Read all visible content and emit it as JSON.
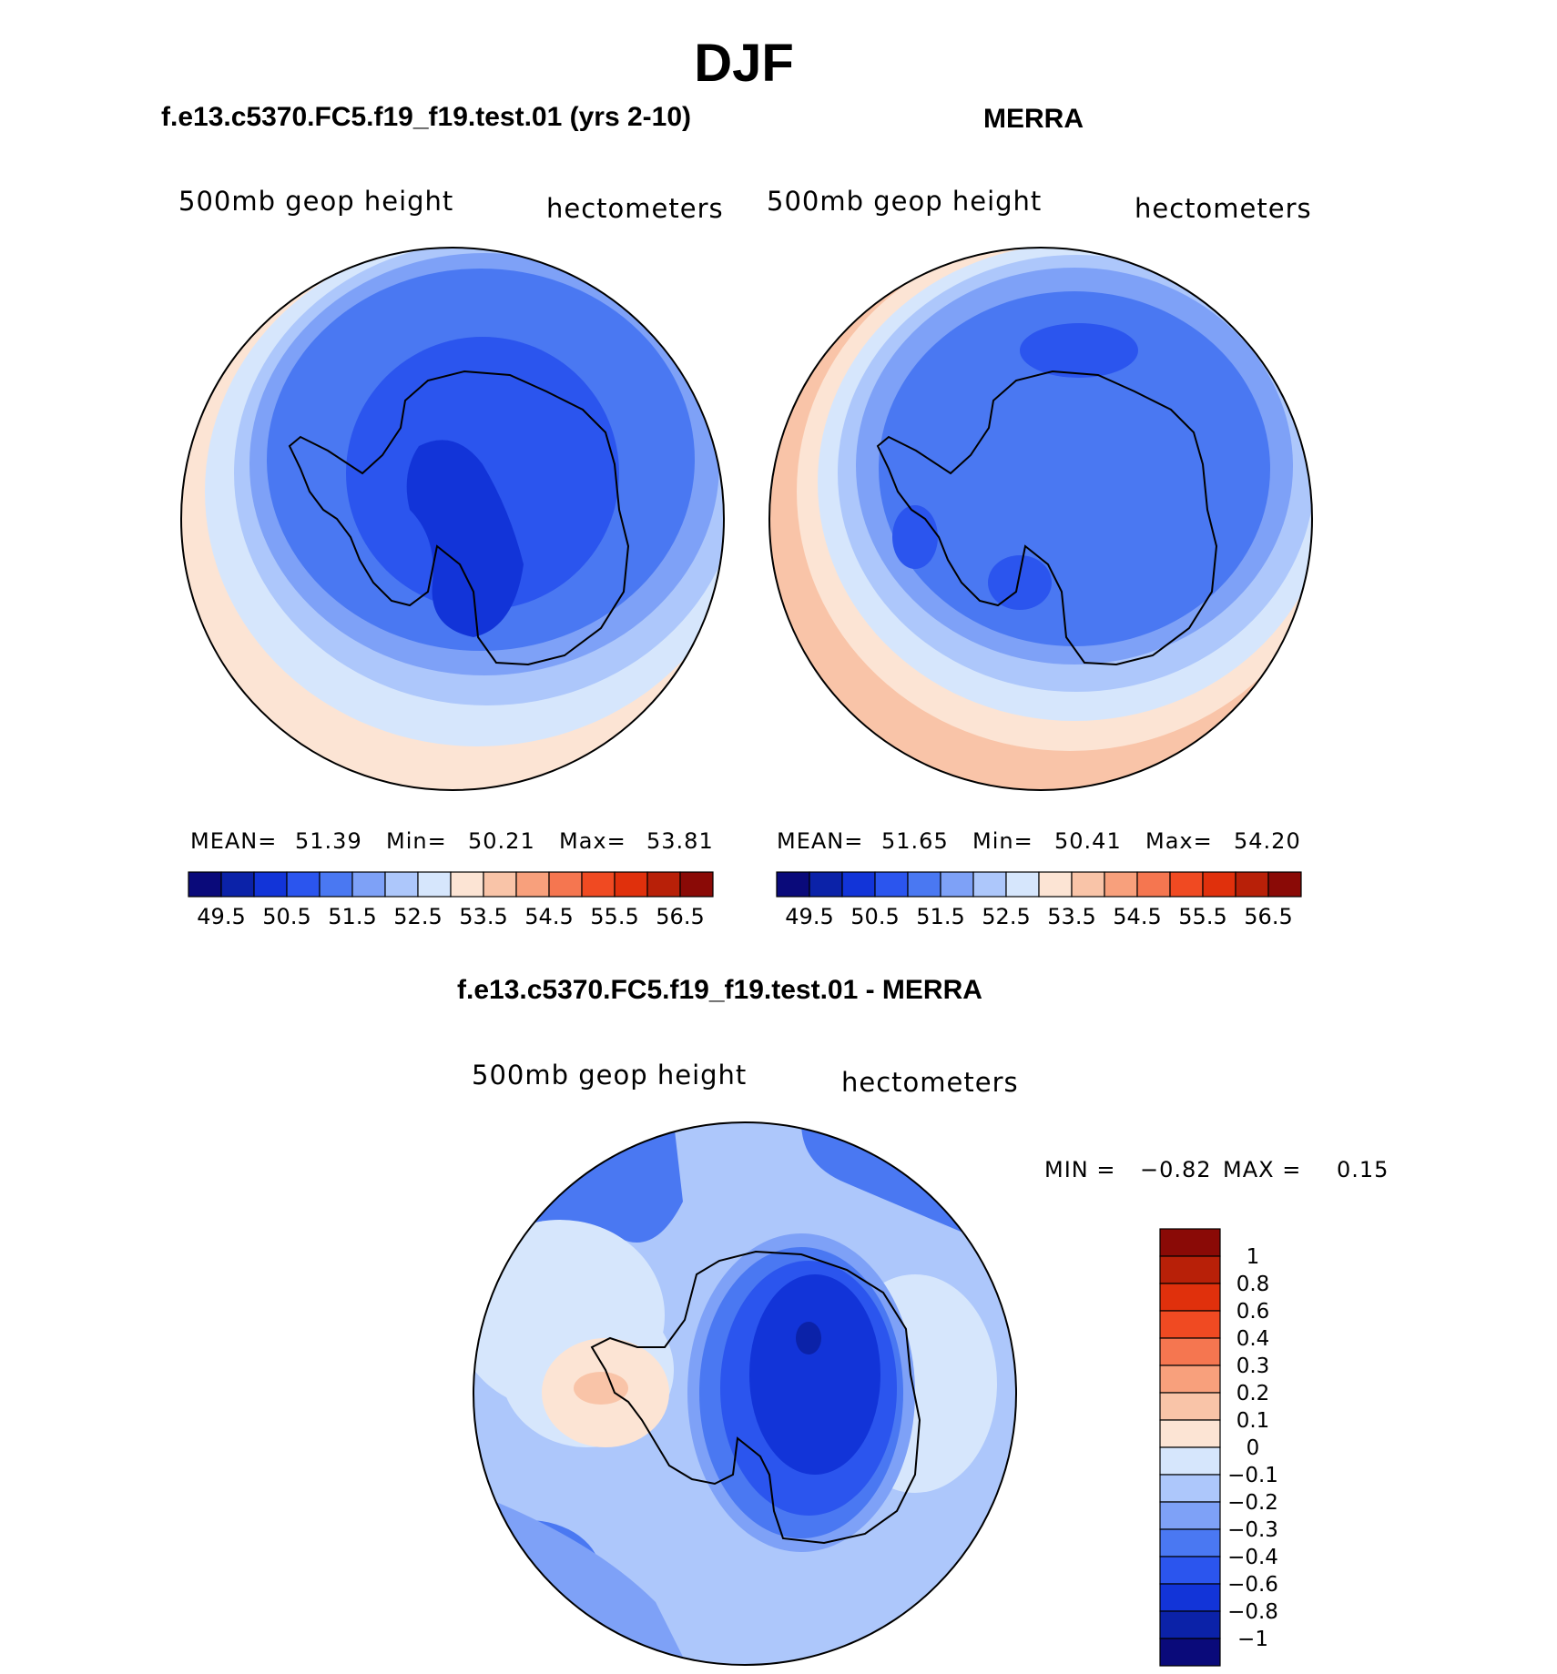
{
  "figure": {
    "title": "DJF",
    "panels": [
      {
        "id": "model",
        "title": "f.e13.c5370.FC5.f19_f19.test.01 (yrs 2-10)",
        "variable": "500mb geop height",
        "units": "hectometers",
        "stats": {
          "mean_label": "MEAN=",
          "mean": "51.39",
          "min_label": "Min=",
          "min": "50.21",
          "max_label": "Max=",
          "max": "53.81"
        }
      },
      {
        "id": "obs",
        "title": "MERRA",
        "variable": "500mb geop height",
        "units": "hectometers",
        "stats": {
          "mean_label": "MEAN=",
          "mean": "51.65",
          "min_label": "Min=",
          "min": "50.41",
          "max_label": "Max=",
          "max": "54.20"
        }
      },
      {
        "id": "diff",
        "title": "f.e13.c5370.FC5.f19_f19.test.01 - MERRA",
        "variable": "500mb geop height",
        "units": "hectometers",
        "stats": {
          "min_label": "MIN =",
          "min": "−0.82",
          "max_label": "MAX =",
          "max": "0.15"
        }
      }
    ]
  },
  "chart_data": [
    {
      "type": "heatmap",
      "title": "f.e13.c5370.FC5.f19_f19.test.01 (yrs 2-10)",
      "variable": "500mb geop height",
      "units": "hectometers",
      "projection": "south polar stereographic",
      "mean": 51.39,
      "min": 50.21,
      "max": 53.81,
      "colorbar": {
        "orientation": "horizontal",
        "tick_labels": [
          "49.5",
          "50.5",
          "51.5",
          "52.5",
          "53.5",
          "54.5",
          "55.5",
          "56.5"
        ],
        "colors": [
          "#0a0a7a",
          "#0b22a8",
          "#1234d8",
          "#2b55ee",
          "#4a78f2",
          "#7ea1f7",
          "#adc7fb",
          "#d6e6fc",
          "#fce4d4",
          "#f9c4a8",
          "#f8a07c",
          "#f57650",
          "#f04a22",
          "#e0300c",
          "#b82008",
          "#8a0a06"
        ]
      }
    },
    {
      "type": "heatmap",
      "title": "MERRA",
      "variable": "500mb geop height",
      "units": "hectometers",
      "projection": "south polar stereographic",
      "mean": 51.65,
      "min": 50.41,
      "max": 54.2,
      "colorbar": {
        "orientation": "horizontal",
        "tick_labels": [
          "49.5",
          "50.5",
          "51.5",
          "52.5",
          "53.5",
          "54.5",
          "55.5",
          "56.5"
        ],
        "colors": [
          "#0a0a7a",
          "#0b22a8",
          "#1234d8",
          "#2b55ee",
          "#4a78f2",
          "#7ea1f7",
          "#adc7fb",
          "#d6e6fc",
          "#fce4d4",
          "#f9c4a8",
          "#f8a07c",
          "#f57650",
          "#f04a22",
          "#e0300c",
          "#b82008",
          "#8a0a06"
        ]
      }
    },
    {
      "type": "heatmap",
      "title": "f.e13.c5370.FC5.f19_f19.test.01 - MERRA",
      "variable": "500mb geop height",
      "units": "hectometers",
      "projection": "south polar stereographic",
      "min": -0.82,
      "max": 0.15,
      "colorbar": {
        "orientation": "vertical",
        "tick_labels": [
          "1",
          "0.8",
          "0.6",
          "0.4",
          "0.3",
          "0.2",
          "0.1",
          "0",
          "−0.1",
          "−0.2",
          "−0.3",
          "−0.4",
          "−0.6",
          "−0.8",
          "−1"
        ],
        "colors": [
          "#8a0a06",
          "#b82008",
          "#e0300c",
          "#f04a22",
          "#f57650",
          "#f8a07c",
          "#f9c4a8",
          "#fce4d4",
          "#d6e6fc",
          "#adc7fb",
          "#7ea1f7",
          "#4a78f2",
          "#2b55ee",
          "#1234d8",
          "#0b22a8",
          "#0a0a7a"
        ]
      }
    }
  ]
}
